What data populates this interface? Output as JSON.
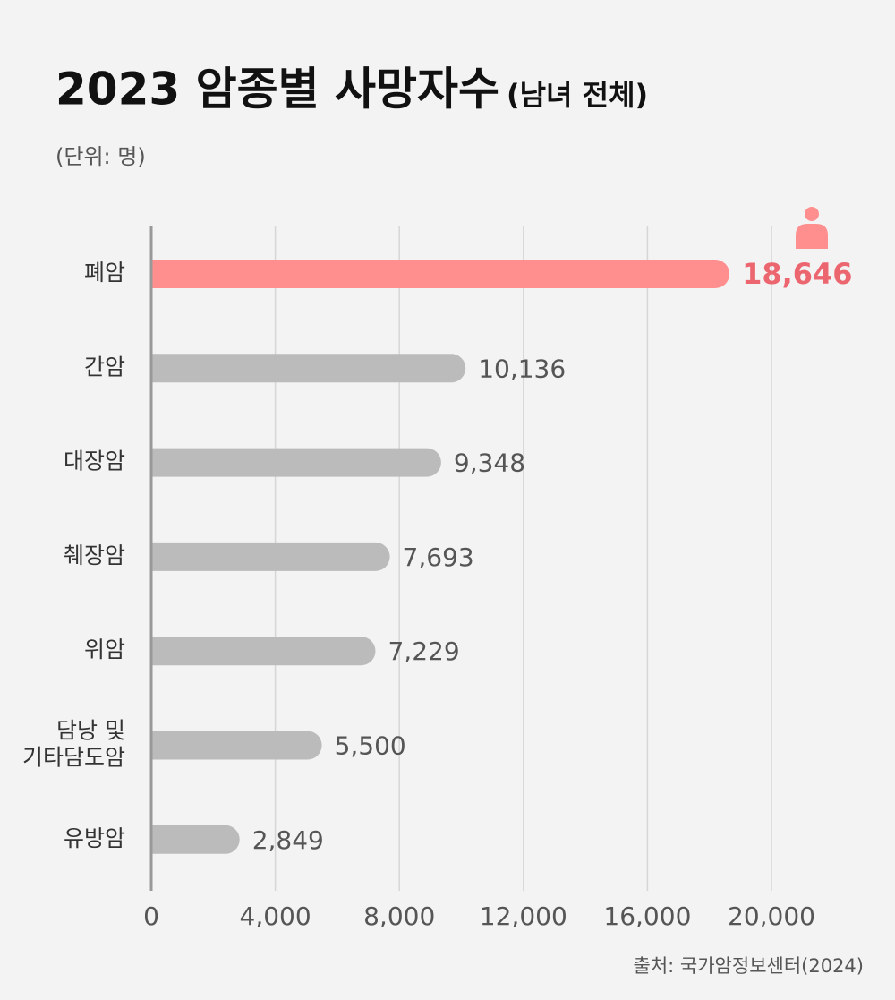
{
  "chart_data": {
    "type": "bar",
    "orientation": "horizontal",
    "title": "2023 암종별 사망자수",
    "title_note": "(남녀 전체)",
    "unit_note": "(단위: 명)",
    "source": "출처: 국가암정보센터(2024)",
    "categories": [
      "폐암",
      "간암",
      "대장암",
      "췌장암",
      "위암",
      "담낭 및\n기타담도암",
      "유방암"
    ],
    "values": [
      18646,
      10136,
      9348,
      7693,
      7229,
      5500,
      2849
    ],
    "value_labels": [
      "18,646",
      "10,136",
      "9,348",
      "7,693",
      "7,229",
      "5,500",
      "2,849"
    ],
    "colors": [
      "#ff8f8f",
      "#bbbbbb",
      "#bbbbbb",
      "#bbbbbb",
      "#bbbbbb",
      "#bbbbbb",
      "#bbbbbb"
    ],
    "label_colors": [
      "#ec6670",
      "#555555",
      "#555555",
      "#555555",
      "#555555",
      "#555555",
      "#555555"
    ],
    "xlim": [
      0,
      20000
    ],
    "xticks": [
      0,
      {
        "value": 4000,
        "label": "4,000"
      },
      {
        "value": 8000,
        "label": "8,000"
      },
      {
        "value": 12000,
        "label": "12,000"
      },
      {
        "value": 16000,
        "label": "16,000"
      },
      {
        "value": 20000,
        "label": "20,000"
      }
    ],
    "grid": true
  }
}
